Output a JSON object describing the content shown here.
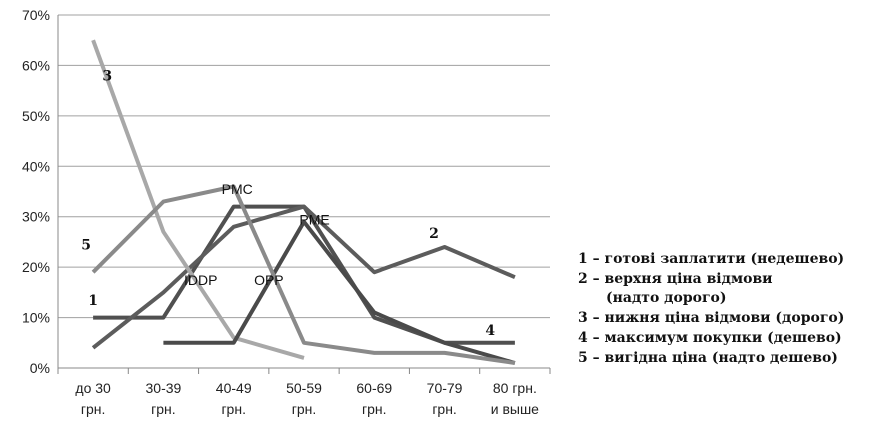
{
  "chart_data": {
    "type": "line",
    "categories": [
      [
        "до 30",
        "грн."
      ],
      [
        "30-39",
        "грн."
      ],
      [
        "40-49",
        "грн."
      ],
      [
        "50-59",
        "грн."
      ],
      [
        "60-69",
        "грн."
      ],
      [
        "70-79",
        "грн."
      ],
      [
        "80 грн.",
        "и выше"
      ]
    ],
    "ylim": [
      0,
      70
    ],
    "yticks": [
      0,
      10,
      20,
      30,
      40,
      50,
      60,
      70
    ],
    "ytick_suffix": "%",
    "grid": true,
    "legend_position": "right",
    "series": [
      {
        "id": "s1",
        "values": [
          10,
          10,
          32,
          32,
          10,
          5,
          5
        ],
        "color": "#505050"
      },
      {
        "id": "s2",
        "values": [
          4,
          15,
          28,
          32,
          19,
          24,
          18
        ],
        "color": "#5c5c5c"
      },
      {
        "id": "s3",
        "values": [
          65,
          27,
          6,
          2,
          null,
          null,
          null
        ],
        "color": "#a8a8a8"
      },
      {
        "id": "s4",
        "values": [
          null,
          5,
          5,
          29,
          11,
          5,
          1
        ],
        "color": "#4a4a4a"
      },
      {
        "id": "s5",
        "values": [
          19,
          33,
          36,
          5,
          3,
          3,
          1
        ],
        "color": "#8a8a8a"
      }
    ],
    "annotations": [
      {
        "text": "3",
        "style": "serif",
        "x": 0.2,
        "y": 57
      },
      {
        "text": "5",
        "style": "serif",
        "x": -0.1,
        "y": 23.5
      },
      {
        "text": "1",
        "style": "serif",
        "x": 0.0,
        "y": 12.5
      },
      {
        "text": "PMC",
        "style": "sans",
        "x": 2.05,
        "y": 34.5
      },
      {
        "text": "PME",
        "style": "sans",
        "x": 3.15,
        "y": 28.5
      },
      {
        "text": "IDDP",
        "style": "sans",
        "x": 1.53,
        "y": 16.5
      },
      {
        "text": "OPP",
        "style": "sans",
        "x": 2.5,
        "y": 16.5
      },
      {
        "text": "2",
        "style": "serif",
        "x": 4.85,
        "y": 25.8
      },
      {
        "text": "4",
        "style": "serif",
        "x": 5.65,
        "y": 6.5
      }
    ],
    "legend": [
      {
        "num": "1",
        "text": "готові заплатити (недешево)"
      },
      {
        "num": "2",
        "text": "верхня ціна відмови",
        "cont": "(надто дорого)"
      },
      {
        "num": "3",
        "text": "нижня ціна відмови (дорого)"
      },
      {
        "num": "4",
        "text": "максимум покупки (дешево)"
      },
      {
        "num": "5",
        "text": "вигідна ціна (надто дешево)"
      }
    ]
  }
}
